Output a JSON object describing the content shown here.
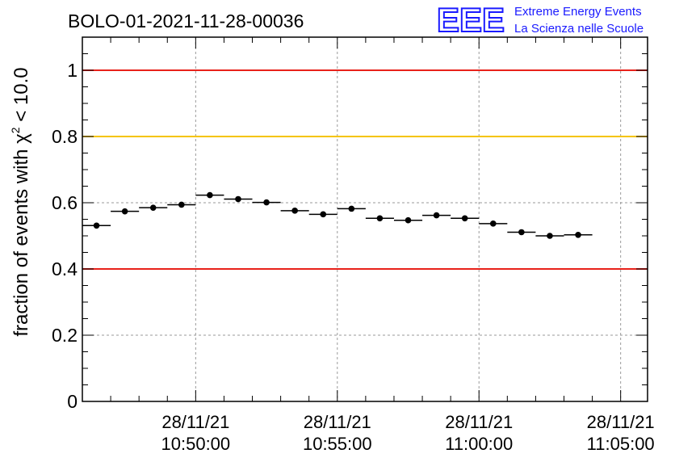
{
  "title": "BOLO-01-2021-11-28-00036",
  "logo": {
    "mark": "EEE",
    "line1": "Extreme Energy Events",
    "line2": "La Scienza nelle Scuole",
    "color": "#1a1aff"
  },
  "chart_data": {
    "type": "scatter",
    "title": "BOLO-01-2021-11-28-00036",
    "xlabel": "",
    "ylabel": "fraction of events with χ² < 10.0",
    "ylabel_parts": {
      "prefix": "fraction of events with ",
      "sym": "χ",
      "sup": "2",
      "suffix": " < 10.0"
    },
    "ylim": [
      0,
      1.1
    ],
    "yticks": [
      0,
      0.2,
      0.4,
      0.6,
      0.8,
      1
    ],
    "ytick_labels": [
      "0",
      "0.2",
      "0.4",
      "0.6",
      "0.8",
      "1"
    ],
    "xlim_minutes": [
      46.0,
      65.95
    ],
    "xticks": [
      {
        "minute": 50,
        "date": "28/11/21",
        "time": "10:50:00"
      },
      {
        "minute": 55,
        "date": "28/11/21",
        "time": "10:55:00"
      },
      {
        "minute": 60,
        "date": "28/11/21",
        "time": "11:00:00"
      },
      {
        "minute": 65,
        "date": "28/11/21",
        "time": "11:05:00"
      }
    ],
    "bin_width_minutes": 1,
    "grid": true,
    "reference_lines": [
      {
        "y": 1.0,
        "color": "#e8221b"
      },
      {
        "y": 0.8,
        "color": "#f5c400"
      },
      {
        "y": 0.4,
        "color": "#e8221b"
      }
    ],
    "points": [
      {
        "x": 46.5,
        "y": 0.531
      },
      {
        "x": 47.5,
        "y": 0.574
      },
      {
        "x": 48.5,
        "y": 0.585
      },
      {
        "x": 49.5,
        "y": 0.594
      },
      {
        "x": 50.5,
        "y": 0.623
      },
      {
        "x": 51.5,
        "y": 0.611
      },
      {
        "x": 52.5,
        "y": 0.601
      },
      {
        "x": 53.5,
        "y": 0.576
      },
      {
        "x": 54.5,
        "y": 0.565
      },
      {
        "x": 55.5,
        "y": 0.582
      },
      {
        "x": 56.5,
        "y": 0.553
      },
      {
        "x": 57.5,
        "y": 0.547
      },
      {
        "x": 58.5,
        "y": 0.562
      },
      {
        "x": 59.5,
        "y": 0.553
      },
      {
        "x": 60.5,
        "y": 0.537
      },
      {
        "x": 61.5,
        "y": 0.511
      },
      {
        "x": 62.5,
        "y": 0.5
      },
      {
        "x": 63.5,
        "y": 0.503
      }
    ]
  }
}
